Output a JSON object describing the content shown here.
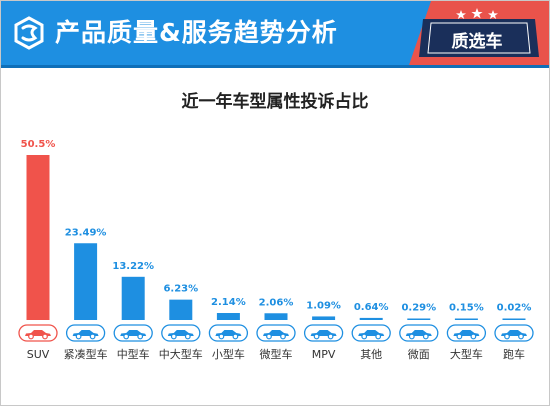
{
  "header": {
    "title": "产品质量&服务趋势分析",
    "badge_label": "质选车",
    "colors": {
      "bar": "#1e8fe1",
      "accent": "#e9534b"
    }
  },
  "chart_data": {
    "type": "bar",
    "title": "近一年车型属性投诉占比",
    "categories": [
      "SUV",
      "紧凑型车",
      "中型车",
      "中大型车",
      "小型车",
      "微型车",
      "MPV",
      "其他",
      "微面",
      "大型车",
      "跑车"
    ],
    "values": [
      50.5,
      23.49,
      13.22,
      6.23,
      2.14,
      2.06,
      1.09,
      0.64,
      0.29,
      0.15,
      0.02
    ],
    "value_labels": [
      "50.5%",
      "23.49%",
      "13.22%",
      "6.23%",
      "2.14%",
      "2.06%",
      "1.09%",
      "0.64%",
      "0.29%",
      "0.15%",
      "0.02%"
    ],
    "xlabel": "",
    "ylabel": "",
    "ylim": [
      0,
      50.5
    ],
    "grid": false,
    "highlight_color": "#f0534b",
    "bar_color": "#1e8fe1",
    "icon": "car-icon"
  }
}
